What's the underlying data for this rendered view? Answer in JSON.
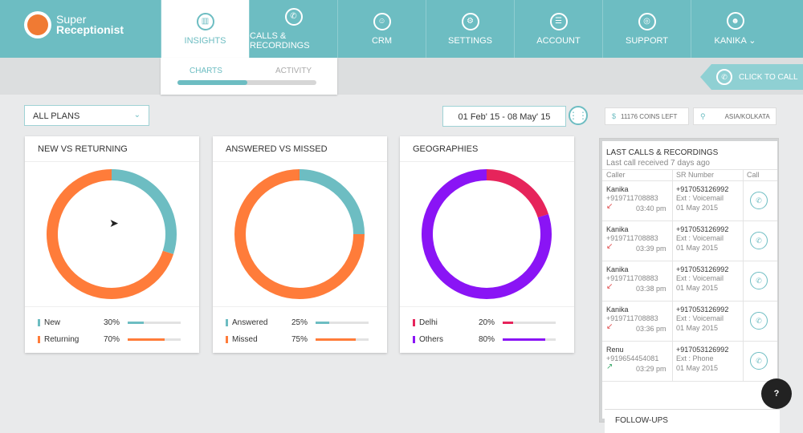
{
  "app": {
    "logo_line1": "Super",
    "logo_line2": "Receptionist"
  },
  "nav": [
    {
      "label": "INSIGHTS",
      "icon": "chart-icon",
      "glyph": "▥"
    },
    {
      "label": "CALLS & RECORDINGS",
      "icon": "phone-icon",
      "glyph": "✆"
    },
    {
      "label": "CRM",
      "icon": "users-icon",
      "glyph": "☺"
    },
    {
      "label": "SETTINGS",
      "icon": "gear-icon",
      "glyph": "⚙"
    },
    {
      "label": "ACCOUNT",
      "icon": "list-icon",
      "glyph": "☰"
    },
    {
      "label": "SUPPORT",
      "icon": "lifebuoy-icon",
      "glyph": "◎"
    },
    {
      "label": "KANIKA",
      "icon": "user-icon",
      "glyph": "☻",
      "chevron": "⌄"
    }
  ],
  "subtabs": {
    "charts": "CHARTS",
    "activity": "ACTIVITY",
    "progress": 0.5
  },
  "click_to_call": {
    "label": "CLICK TO CALL",
    "glyph": "✆"
  },
  "filters": {
    "plans": "ALL PLANS",
    "plans_chevron": "⌄",
    "date_range": "01 Feb' 15  -  08 May' 15",
    "grid_glyph": "⋮⋮"
  },
  "info": {
    "coins": "11176 COINS LEFT",
    "coins_glyph": "$",
    "timezone": "ASIA/KOLKATA",
    "tz_glyph": "⚲"
  },
  "colors": {
    "teal": "#6dbdc2",
    "orange": "#ff7c3a",
    "crimson": "#e6245b",
    "purple": "#8a14f5",
    "red_arrow": "#e04b4b",
    "green_arrow": "#3daa6d"
  },
  "cards": [
    {
      "title": "NEW VS RETURNING",
      "segments": [
        {
          "name": "New",
          "percent": 30,
          "pct_label": "30%",
          "color": "#6dbdc2"
        },
        {
          "name": "Returning",
          "percent": 70,
          "pct_label": "70%",
          "color": "#ff7c3a"
        }
      ]
    },
    {
      "title": "ANSWERED VS MISSED",
      "segments": [
        {
          "name": "Answered",
          "percent": 25,
          "pct_label": "25%",
          "color": "#6dbdc2"
        },
        {
          "name": "Missed",
          "percent": 75,
          "pct_label": "75%",
          "color": "#ff7c3a"
        }
      ]
    },
    {
      "title": "GEOGRAPHIES",
      "segments": [
        {
          "name": "Delhi",
          "percent": 20,
          "pct_label": "20%",
          "color": "#e6245b"
        },
        {
          "name": "Others",
          "percent": 80,
          "pct_label": "80%",
          "color": "#8a14f5"
        }
      ]
    }
  ],
  "calls_panel": {
    "title": "LAST CALLS & RECORDINGS",
    "subtitle": "Last call received 7 days ago",
    "col_caller": "Caller",
    "col_sr": "SR Number",
    "col_call": "Call",
    "call_glyph": "✆",
    "rows": [
      {
        "name": "Kanika",
        "phone": "+919711708883",
        "arrow": "↙",
        "time": "03:40 pm",
        "sr": "+917053126992",
        "ext": "Ext : Voicemail",
        "date": "01 May 2015",
        "dir": "in"
      },
      {
        "name": "Kanika",
        "phone": "+919711708883",
        "arrow": "↙",
        "time": "03:39 pm",
        "sr": "+917053126992",
        "ext": "Ext : Voicemail",
        "date": "01 May 2015",
        "dir": "in"
      },
      {
        "name": "Kanika",
        "phone": "+919711708883",
        "arrow": "↙",
        "time": "03:38 pm",
        "sr": "+917053126992",
        "ext": "Ext : Voicemail",
        "date": "01 May 2015",
        "dir": "in"
      },
      {
        "name": "Kanika",
        "phone": "+919711708883",
        "arrow": "↙",
        "time": "03:36 pm",
        "sr": "+917053126992",
        "ext": "Ext : Voicemail",
        "date": "01 May 2015",
        "dir": "in"
      },
      {
        "name": "Renu",
        "phone": "+919654454081",
        "arrow": "↗",
        "time": "03:29 pm",
        "sr": "+917053126992",
        "ext": "Ext : Phone",
        "date": "01 May 2015",
        "dir": "out"
      }
    ],
    "followups": "FOLLOW-UPS"
  },
  "help": {
    "glyph": "?"
  }
}
